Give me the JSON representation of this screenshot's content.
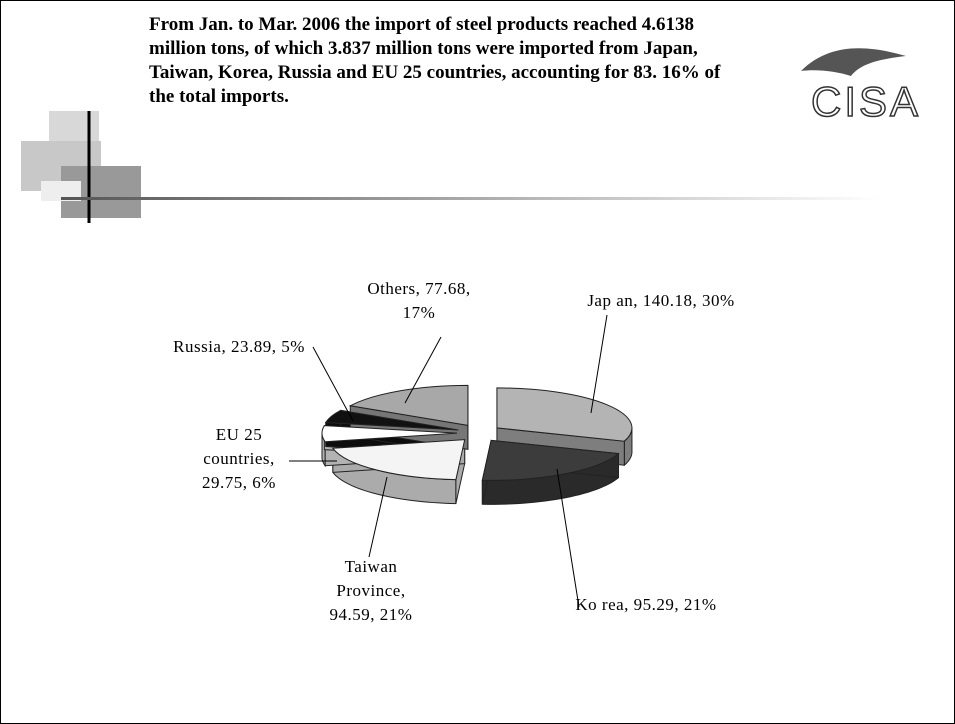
{
  "header": {
    "title": "From Jan. to Mar. 2006 the import of steel products reached 4.6138 million tons, of which 3.837 million tons were imported from Japan, Taiwan, Korea, Russia and EU 25 countries, accounting for 83. 16% of the total imports.",
    "logo": "CISA"
  },
  "chart_data": {
    "type": "pie",
    "categories": [
      "Japan",
      "Korea",
      "Taiwan Province",
      "EU 25 countries",
      "Russia",
      "Others"
    ],
    "values": [
      140.18,
      95.29,
      94.59,
      29.75,
      23.89,
      77.68
    ],
    "value_labels": [
      "Jap an, 140.18, 30%",
      "Ko rea, 95.29, 21%",
      "Taiwan Province, 94.59, 21%",
      "EU 25 countries, 29.75, 6%",
      "Russia, 23.89, 5%",
      "Others, 77.68, 17%"
    ],
    "colors": [
      "#b4b4b4",
      "#3c3c3c",
      "#f4f4f4",
      "#ffffff",
      "#111111",
      "#a8a8a8"
    ]
  }
}
